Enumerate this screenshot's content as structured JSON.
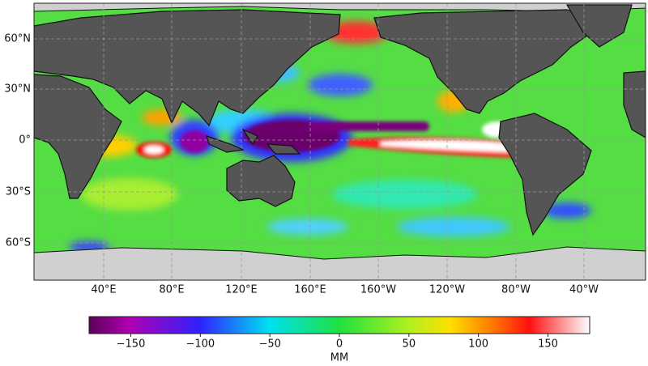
{
  "map": {
    "lat_labels": [
      "60°N",
      "30°N",
      "0°",
      "30°S",
      "60°S"
    ],
    "lon_labels": [
      "40°E",
      "80°E",
      "120°E",
      "160°E",
      "160°W",
      "120°W",
      "80°W",
      "40°W"
    ],
    "colorbar": {
      "label": "MM",
      "lim": [
        -180,
        180
      ],
      "ticks": [
        {
          "value": -150,
          "label": "−150"
        },
        {
          "value": -100,
          "label": "−100"
        },
        {
          "value": -50,
          "label": "−50"
        },
        0,
        50,
        100,
        150
      ]
    }
  }
}
